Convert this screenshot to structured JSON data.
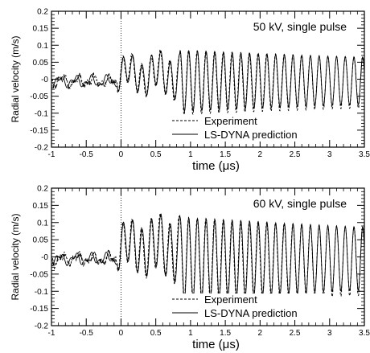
{
  "chart_data": [
    {
      "type": "line",
      "title": "50 kV, single pulse",
      "xlabel": "time (μs)",
      "ylabel": "Radial velocity (m/s)",
      "xlim": [
        -1,
        3.5
      ],
      "ylim": [
        -0.2,
        0.2
      ],
      "x_ticks": [
        -1,
        -0.5,
        0,
        0.5,
        1,
        1.5,
        2,
        2.5,
        3,
        3.5
      ],
      "x_tick_labels": [
        "-1",
        "-0.5",
        "0",
        "0.5",
        "1",
        "1.5",
        "2",
        "2.5",
        "3",
        "3.5"
      ],
      "y_ticks": [
        -0.2,
        -0.15,
        -0.1,
        -0.05,
        0,
        0.05,
        0.1,
        0.15,
        0.2
      ],
      "y_tick_labels": [
        "-0.2",
        "-0.15",
        "-0.1",
        "-0.05",
        "-0",
        "0.05",
        "0.1",
        "0.15",
        "0.2"
      ],
      "legend": "bottom-right",
      "grid": false,
      "reference_line_x": 0,
      "series": [
        {
          "name": "Experiment",
          "style": "dashed",
          "x": [
            -1,
            -0.75,
            -0.5,
            -0.25,
            0,
            0.1,
            0.2,
            0.3,
            0.4,
            0.5,
            0.6,
            0.7,
            0.8,
            0.85,
            0.9,
            1.0,
            1.25,
            1.5,
            1.75,
            2.0,
            2.25,
            2.5,
            2.75,
            3.0,
            3.25,
            3.5
          ],
          "y": [
            0.0,
            -0.01,
            -0.02,
            0.01,
            -0.05,
            0.05,
            -0.03,
            0.06,
            -0.02,
            0.07,
            -0.01,
            0.08,
            0.0,
            0.1,
            -0.05,
            0.07,
            -0.07,
            0.08,
            -0.08,
            0.07,
            -0.08,
            0.05,
            -0.09,
            0.05,
            -0.08,
            0.05
          ]
        },
        {
          "name": "LS-DYNA prediction",
          "style": "solid",
          "x": [
            -1,
            -0.75,
            -0.5,
            -0.25,
            0,
            0.1,
            0.2,
            0.3,
            0.4,
            0.5,
            0.6,
            0.7,
            0.8,
            0.85,
            0.9,
            1.0,
            1.25,
            1.5,
            1.75,
            2.0,
            2.25,
            2.5,
            2.75,
            3.0,
            3.25,
            3.5
          ],
          "y": [
            0.0,
            -0.02,
            -0.01,
            0.01,
            -0.02,
            0.04,
            -0.04,
            0.06,
            -0.04,
            0.07,
            -0.03,
            0.08,
            -0.02,
            0.1,
            -0.05,
            0.07,
            -0.06,
            0.07,
            -0.07,
            0.07,
            -0.07,
            0.06,
            -0.07,
            0.05,
            -0.07,
            0.05
          ]
        }
      ]
    },
    {
      "type": "line",
      "title": "60 kV, single pulse",
      "xlabel": "time (μs)",
      "ylabel": "Radial velocity (m/s)",
      "xlim": [
        -1,
        3.5
      ],
      "ylim": [
        -0.2,
        0.2
      ],
      "x_ticks": [
        -1,
        -0.5,
        0,
        0.5,
        1,
        1.5,
        2,
        2.5,
        3,
        3.5
      ],
      "x_tick_labels": [
        "-1",
        "-0.5",
        "0",
        "0.5",
        "1",
        "1.5",
        "2",
        "2.5",
        "3",
        "3.5"
      ],
      "y_ticks": [
        -0.2,
        -0.15,
        -0.1,
        -0.05,
        0,
        0.05,
        0.1,
        0.15,
        0.2
      ],
      "y_tick_labels": [
        "-0.2",
        "-0.15",
        "-0.1",
        "-0.05",
        "-0",
        "0.05",
        "0.1",
        "0.15",
        "0.2"
      ],
      "legend": "bottom-right",
      "grid": false,
      "reference_line_x": 0,
      "series": [
        {
          "name": "Experiment",
          "style": "dashed",
          "x": [
            -1,
            -0.75,
            -0.5,
            -0.25,
            0,
            0.1,
            0.2,
            0.3,
            0.4,
            0.5,
            0.6,
            0.7,
            0.8,
            0.85,
            0.9,
            1.0,
            1.25,
            1.5,
            1.75,
            2.0,
            2.25,
            2.5,
            2.75,
            3.0,
            3.25,
            3.5
          ],
          "y": [
            0.0,
            0.01,
            -0.01,
            0.0,
            0.05,
            -0.05,
            0.1,
            -0.06,
            0.12,
            -0.05,
            0.13,
            -0.04,
            0.12,
            0.16,
            -0.05,
            0.12,
            -0.11,
            0.12,
            -0.12,
            0.1,
            -0.11,
            0.09,
            -0.12,
            0.08,
            -0.12,
            0.08
          ]
        },
        {
          "name": "LS-DYNA prediction",
          "style": "solid",
          "x": [
            -1,
            -0.75,
            -0.5,
            -0.25,
            0,
            0.1,
            0.2,
            0.3,
            0.4,
            0.5,
            0.6,
            0.7,
            0.8,
            0.85,
            0.9,
            1.0,
            1.25,
            1.5,
            1.75,
            2.0,
            2.25,
            2.5,
            2.75,
            3.0,
            3.25,
            3.5
          ],
          "y": [
            0.0,
            0.0,
            -0.01,
            0.0,
            0.03,
            -0.06,
            0.1,
            -0.08,
            0.11,
            -0.07,
            0.12,
            -0.06,
            0.11,
            0.16,
            -0.05,
            0.12,
            -0.1,
            0.11,
            -0.1,
            0.1,
            -0.1,
            0.09,
            -0.1,
            0.08,
            -0.1,
            0.08
          ]
        }
      ]
    }
  ]
}
